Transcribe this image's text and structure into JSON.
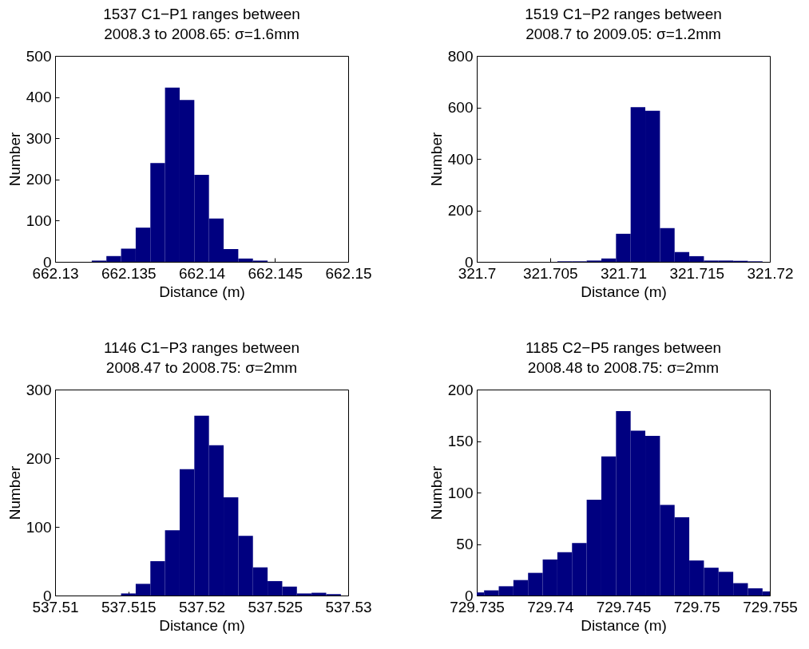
{
  "chart_data": [
    {
      "type": "histogram",
      "title": "1537 C1−P1 ranges  between",
      "subtitle": "2008.3 to 2008.65: σ=1.6mm",
      "xlabel": "Distance (m)",
      "ylabel": "Number",
      "color": "#000080",
      "bins": [
        662.1325,
        662.1335,
        662.1345,
        662.1355,
        662.1365,
        662.1375,
        662.1385,
        662.1395,
        662.1405,
        662.1415,
        662.1425,
        662.1435,
        662.1445
      ],
      "values": [
        3,
        14,
        32,
        83,
        240,
        423,
        393,
        211,
        105,
        31,
        8,
        3
      ],
      "xlim": [
        662.13,
        662.15
      ],
      "xticks": [
        662.13,
        662.135,
        662.14,
        662.145,
        662.15
      ],
      "ylim": [
        0,
        500
      ],
      "yticks": [
        0,
        100,
        200,
        300,
        400,
        500
      ]
    },
    {
      "type": "histogram",
      "title": "1519 C1−P2 ranges  between",
      "subtitle": "2008.7 to 2009.05: σ=1.2mm",
      "xlabel": "Distance (m)",
      "ylabel": "Number",
      "color": "#000080",
      "bins": [
        321.7055,
        321.7065,
        321.7075,
        321.7085,
        321.7095,
        321.7105,
        321.7115,
        321.7125,
        321.7135,
        321.7145,
        321.7155,
        321.7165,
        321.7175,
        321.7185,
        321.7195
      ],
      "values": [
        2,
        2,
        5,
        13,
        109,
        601,
        587,
        131,
        38,
        22,
        5,
        5,
        4,
        2
      ],
      "xlim": [
        321.7,
        321.72
      ],
      "xticks": [
        321.7,
        321.705,
        321.71,
        321.715,
        321.72
      ],
      "ylim": [
        0,
        800
      ],
      "yticks": [
        0,
        200,
        400,
        600,
        800
      ]
    },
    {
      "type": "histogram",
      "title": "1146 C1−P3 ranges  between",
      "subtitle": "2008.47 to 2008.75: σ=2mm",
      "xlabel": "Distance (m)",
      "ylabel": "Number",
      "color": "#000080",
      "bins": [
        537.5145,
        537.5155,
        537.5165,
        537.5175,
        537.5185,
        537.5195,
        537.5205,
        537.5215,
        537.5225,
        537.5235,
        537.5245,
        537.5255,
        537.5265,
        537.5275,
        537.5285,
        537.5295
      ],
      "values": [
        3,
        17,
        50,
        95,
        184,
        262,
        219,
        143,
        87,
        41,
        21,
        13,
        3,
        4,
        2
      ],
      "xlim": [
        537.51,
        537.53
      ],
      "xticks": [
        537.51,
        537.515,
        537.52,
        537.525,
        537.53
      ],
      "ylim": [
        0,
        300
      ],
      "yticks": [
        0,
        100,
        200,
        300
      ]
    },
    {
      "type": "histogram",
      "title": "1185 C2−P5 ranges  between",
      "subtitle": "2008.48 to 2008.75: σ=2mm",
      "xlabel": "Distance (m)",
      "ylabel": "Number",
      "color": "#000080",
      "bins": [
        729.735,
        729.7355,
        729.7365,
        729.7375,
        729.7385,
        729.7395,
        729.7405,
        729.7415,
        729.7425,
        729.7435,
        729.7445,
        729.7455,
        729.7465,
        729.7475,
        729.7485,
        729.7495,
        729.7505,
        729.7515,
        729.7525,
        729.7535,
        729.7545,
        729.755
      ],
      "values": [
        3,
        5,
        9,
        15,
        22,
        35,
        42,
        51,
        93,
        135,
        179,
        160,
        155,
        88,
        76,
        34,
        27,
        23,
        12,
        7,
        4
      ],
      "xlim": [
        729.735,
        729.755
      ],
      "xticks": [
        729.735,
        729.74,
        729.745,
        729.75,
        729.755
      ],
      "ylim": [
        0,
        200
      ],
      "yticks": [
        0,
        50,
        100,
        150,
        200
      ]
    }
  ]
}
